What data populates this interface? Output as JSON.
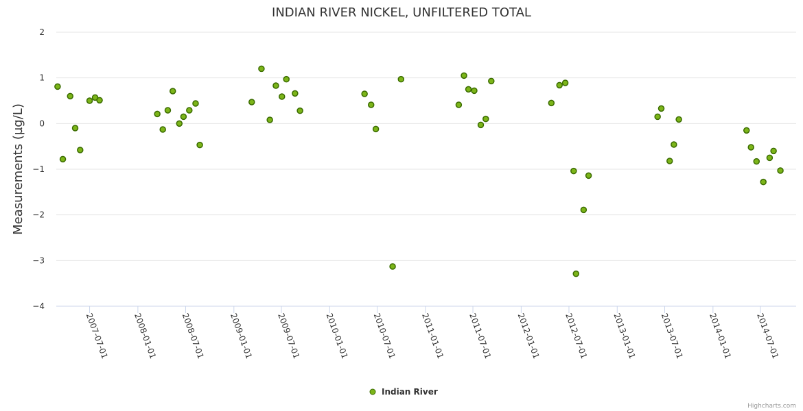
{
  "chart_data": {
    "type": "scatter",
    "title": "INDIAN RIVER NICKEL, UNFILTERED TOTAL",
    "ylabel": "Measurements (µg/L)",
    "xlabel": "",
    "ylim": [
      -4,
      2
    ],
    "yticks": [
      2,
      1,
      0,
      -1,
      -2,
      -3,
      -4
    ],
    "ytick_labels": [
      "2",
      "1",
      "0",
      "−1",
      "−2",
      "−3",
      "−4"
    ],
    "xlim": [
      "2007-02-24",
      "2014-11-14"
    ],
    "xticks": [
      "2007-07-01",
      "2008-01-01",
      "2008-07-01",
      "2009-01-01",
      "2009-07-01",
      "2010-01-01",
      "2010-07-01",
      "2011-01-01",
      "2011-07-01",
      "2012-01-01",
      "2012-07-01",
      "2013-01-01",
      "2013-07-01",
      "2014-01-01",
      "2014-07-01"
    ],
    "grid": true,
    "legend_position": "bottom-center",
    "series": [
      {
        "name": "Indian River",
        "color": "#7cb519",
        "border": "#3a6b00",
        "points": [
          {
            "x": "2007-03-01",
            "y": 0.81
          },
          {
            "x": "2007-03-21",
            "y": -0.78
          },
          {
            "x": "2007-04-18",
            "y": 0.6
          },
          {
            "x": "2007-05-07",
            "y": -0.1
          },
          {
            "x": "2007-05-26",
            "y": -0.58
          },
          {
            "x": "2007-07-01",
            "y": 0.5
          },
          {
            "x": "2007-07-22",
            "y": 0.57
          },
          {
            "x": "2007-08-08",
            "y": 0.51
          },
          {
            "x": "2008-03-15",
            "y": 0.21
          },
          {
            "x": "2008-04-05",
            "y": -0.13
          },
          {
            "x": "2008-04-24",
            "y": 0.29
          },
          {
            "x": "2008-05-13",
            "y": 0.71
          },
          {
            "x": "2008-06-07",
            "y": 0.0
          },
          {
            "x": "2008-06-23",
            "y": 0.15
          },
          {
            "x": "2008-07-15",
            "y": 0.29
          },
          {
            "x": "2008-08-08",
            "y": 0.44
          },
          {
            "x": "2008-08-24",
            "y": -0.47
          },
          {
            "x": "2009-03-10",
            "y": 0.47
          },
          {
            "x": "2009-04-16",
            "y": 1.2
          },
          {
            "x": "2009-05-18",
            "y": 0.08
          },
          {
            "x": "2009-06-10",
            "y": 0.83
          },
          {
            "x": "2009-07-03",
            "y": 0.59
          },
          {
            "x": "2009-07-20",
            "y": 0.97
          },
          {
            "x": "2009-08-22",
            "y": 0.66
          },
          {
            "x": "2009-09-10",
            "y": 0.28
          },
          {
            "x": "2010-05-14",
            "y": 0.65
          },
          {
            "x": "2010-06-08",
            "y": 0.41
          },
          {
            "x": "2010-06-26",
            "y": -0.12
          },
          {
            "x": "2010-08-29",
            "y": -3.13
          },
          {
            "x": "2010-09-30",
            "y": 0.97
          },
          {
            "x": "2011-05-08",
            "y": 0.41
          },
          {
            "x": "2011-05-28",
            "y": 1.05
          },
          {
            "x": "2011-06-14",
            "y": 0.75
          },
          {
            "x": "2011-07-06",
            "y": 0.72
          },
          {
            "x": "2011-07-31",
            "y": -0.03
          },
          {
            "x": "2011-08-19",
            "y": 0.1
          },
          {
            "x": "2011-09-09",
            "y": 0.93
          },
          {
            "x": "2012-04-25",
            "y": 0.45
          },
          {
            "x": "2012-05-26",
            "y": 0.84
          },
          {
            "x": "2012-06-17",
            "y": 0.89
          },
          {
            "x": "2012-07-19",
            "y": -1.04
          },
          {
            "x": "2012-07-28",
            "y": -3.29
          },
          {
            "x": "2012-08-26",
            "y": -1.89
          },
          {
            "x": "2012-09-14",
            "y": -1.14
          },
          {
            "x": "2013-06-04",
            "y": 0.15
          },
          {
            "x": "2013-06-18",
            "y": 0.33
          },
          {
            "x": "2013-07-20",
            "y": -0.82
          },
          {
            "x": "2013-08-05",
            "y": -0.46
          },
          {
            "x": "2013-08-24",
            "y": 0.09
          },
          {
            "x": "2014-05-09",
            "y": -0.15
          },
          {
            "x": "2014-05-26",
            "y": -0.52
          },
          {
            "x": "2014-06-16",
            "y": -0.83
          },
          {
            "x": "2014-07-12",
            "y": -1.28
          },
          {
            "x": "2014-08-05",
            "y": -0.75
          },
          {
            "x": "2014-08-20",
            "y": -0.6
          },
          {
            "x": "2014-09-15",
            "y": -1.03
          }
        ]
      }
    ]
  },
  "legend": {
    "label": "Indian River"
  },
  "credits": {
    "text": "Highcharts.com"
  }
}
